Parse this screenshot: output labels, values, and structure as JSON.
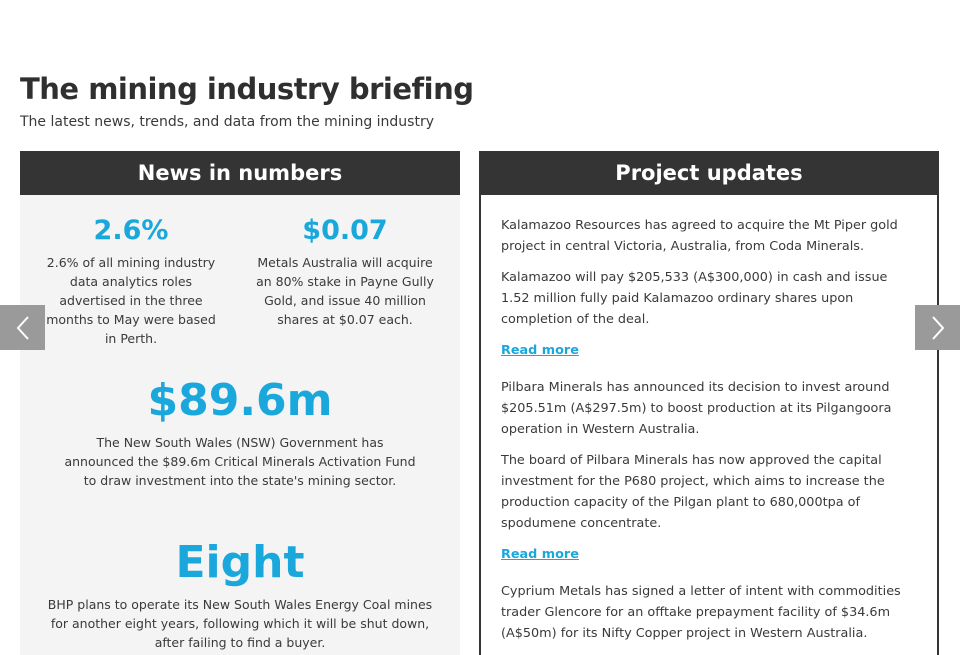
{
  "header": {
    "title": "The mining industry briefing",
    "subtitle": "The latest news, trends, and data from the mining industry"
  },
  "news_numbers": {
    "heading": "News in numbers",
    "stats": [
      {
        "value": "2.6%",
        "description": "2.6% of all mining industry data analytics roles advertised in the three months to May were based in Perth."
      },
      {
        "value": "$0.07",
        "description": "Metals Australia will acquire an 80% stake in Payne Gully Gold, and issue 40 million shares at $0.07 each."
      },
      {
        "value": "$89.6m",
        "description": "The New South Wales (NSW) Government has announced the $89.6m Critical Minerals Activation Fund to draw investment into the state's mining sector."
      },
      {
        "value": "Eight",
        "description": "BHP plans to operate its New South Wales Energy Coal mines for another eight years, following which it will be shut down, after failing to find a buyer."
      }
    ]
  },
  "project_updates": {
    "heading": "Project updates",
    "items": [
      {
        "paragraphs": [
          "Kalamazoo Resources has agreed to acquire the Mt Piper gold project in central Victoria, Australia, from Coda Minerals.",
          "Kalamazoo will pay $205,533 (A$300,000) in cash and issue 1.52 million fully paid Kalamazoo ordinary shares upon completion of the deal."
        ],
        "link": "Read more"
      },
      {
        "paragraphs": [
          "Pilbara Minerals has announced its decision to invest around $205.51m (A$297.5m) to boost production at its Pilgangoora operation in Western Australia.",
          "The board of Pilbara Minerals has now approved the capital investment for the P680 project, which aims to increase the production capacity of the Pilgan plant to 680,000tpa of spodumene concentrate."
        ],
        "link": "Read more"
      },
      {
        "paragraphs": [
          "Cyprium Metals has signed a letter of intent with commodities trader Glencore for an offtake prepayment facility of $34.6m (A$50m) for its Nifty Copper project in Western Australia."
        ]
      }
    ]
  },
  "carousel": {
    "prev_icon": "chevron-left-icon",
    "next_icon": "chevron-right-icon"
  }
}
